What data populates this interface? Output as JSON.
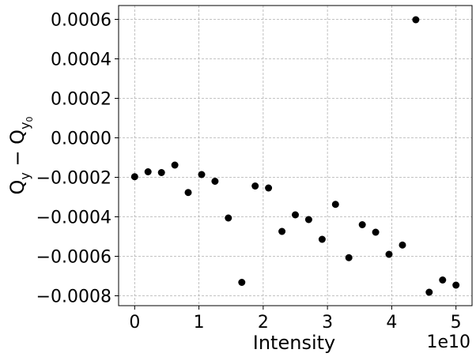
{
  "chart_data": {
    "type": "scatter",
    "xlabel": "Intensity",
    "ylabel": "Q_y − Q_y0",
    "x_offset_label": "1e10",
    "x_scale": 10000000000.0,
    "xlim": [
      -2500000000.0,
      52500000000.0
    ],
    "ylim": [
      -0.00085,
      0.00067
    ],
    "x_ticks": [
      0,
      10000000000.0,
      20000000000.0,
      30000000000.0,
      40000000000.0,
      50000000000.0
    ],
    "x_tick_labels": [
      "0",
      "1",
      "2",
      "3",
      "4",
      "5"
    ],
    "y_ticks": [
      0.0006,
      0.0004,
      0.0002,
      0.0,
      -0.0002,
      -0.0004,
      -0.0006,
      -0.0008
    ],
    "y_tick_labels": [
      "0.0006",
      "0.0004",
      "0.0002",
      "0.0000",
      "−0.0002",
      "−0.0004",
      "−0.0006",
      "−0.0008"
    ],
    "grid": true,
    "marker_color": "#000000",
    "points": [
      {
        "x": 0.0,
        "y": -0.000197
      },
      {
        "x": 2080000000.0,
        "y": -0.000172
      },
      {
        "x": 4170000000.0,
        "y": -0.000176
      },
      {
        "x": 6250000000.0,
        "y": -0.000138
      },
      {
        "x": 8330000000.0,
        "y": -0.000277
      },
      {
        "x": 10420000000.0,
        "y": -0.000186
      },
      {
        "x": 12500000000.0,
        "y": -0.00022
      },
      {
        "x": 14580000000.0,
        "y": -0.000406
      },
      {
        "x": 16670000000.0,
        "y": -0.000732
      },
      {
        "x": 18750000000.0,
        "y": -0.000244
      },
      {
        "x": 20830000000.0,
        "y": -0.000254
      },
      {
        "x": 22920000000.0,
        "y": -0.000474
      },
      {
        "x": 25000000000.0,
        "y": -0.00039
      },
      {
        "x": 27080000000.0,
        "y": -0.000414
      },
      {
        "x": 29170000000.0,
        "y": -0.000514
      },
      {
        "x": 31250000000.0,
        "y": -0.000337
      },
      {
        "x": 33330000000.0,
        "y": -0.000607
      },
      {
        "x": 35420000000.0,
        "y": -0.00044
      },
      {
        "x": 37500000000.0,
        "y": -0.000478
      },
      {
        "x": 39580000000.0,
        "y": -0.00059
      },
      {
        "x": 41670000000.0,
        "y": -0.000543
      },
      {
        "x": 43750000000.0,
        "y": 0.000598
      },
      {
        "x": 45830000000.0,
        "y": -0.000782
      },
      {
        "x": 47920000000.0,
        "y": -0.00072
      },
      {
        "x": 50000000000.0,
        "y": -0.000746
      }
    ]
  }
}
